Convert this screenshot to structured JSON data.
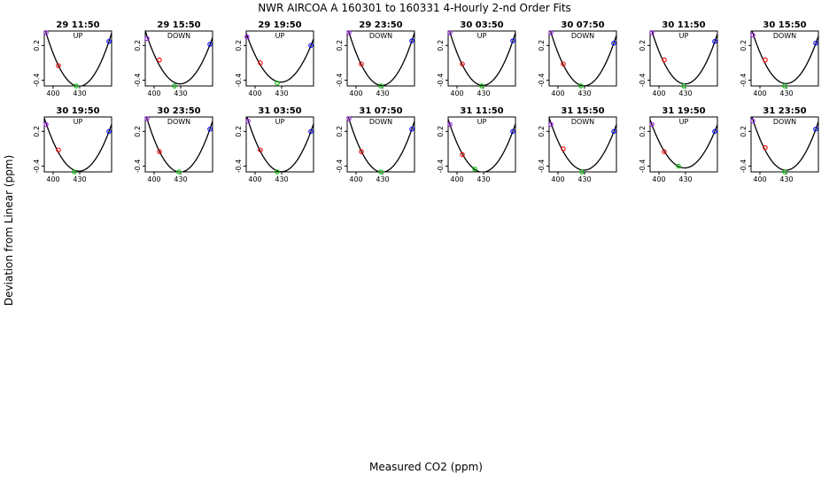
{
  "title": "NWR   AIRCOA A   160301 to 160331   4-Hourly 2-nd Order Fits",
  "ylabel": "Deviation from Linear (ppm)",
  "xlabel": "Measured CO2 (ppm)",
  "chart_data": {
    "type": "scatter",
    "title": "NWR   AIRCOA A   160301 to 160331   4-Hourly 2-nd Order Fits",
    "xlabel": "Measured CO2 (ppm)",
    "ylabel": "Deviation from Linear (ppm)",
    "xlim": [
      390,
      466
    ],
    "ylim": [
      -0.5,
      0.45
    ],
    "xticks": [
      400,
      430
    ],
    "xtick_labels": [
      "400",
      "430"
    ],
    "yticks": [
      0.2,
      -0.4
    ],
    "ytick_labels": [
      "0.2",
      "-0.4"
    ],
    "panels": [
      {
        "label": "29 11:50",
        "direction": "UP",
        "points": [
          {
            "x": 392,
            "y": 0.42,
            "color": "purple"
          },
          {
            "x": 406,
            "y": -0.15,
            "color": "red"
          },
          {
            "x": 426,
            "y": -0.5,
            "color": "green"
          },
          {
            "x": 463,
            "y": 0.27,
            "color": "blue"
          }
        ]
      },
      {
        "label": "29 15:50",
        "direction": "DOWN",
        "points": [
          {
            "x": 392,
            "y": 0.32,
            "color": "purple"
          },
          {
            "x": 406,
            "y": -0.05,
            "color": "red"
          },
          {
            "x": 423,
            "y": -0.5,
            "color": "green"
          },
          {
            "x": 463,
            "y": 0.22,
            "color": "blue"
          }
        ]
      },
      {
        "label": "29 19:50",
        "direction": "UP",
        "points": [
          {
            "x": 391,
            "y": 0.35,
            "color": "purple"
          },
          {
            "x": 406,
            "y": -0.1,
            "color": "red"
          },
          {
            "x": 425,
            "y": -0.45,
            "color": "green"
          },
          {
            "x": 463,
            "y": 0.2,
            "color": "blue"
          }
        ]
      },
      {
        "label": "29 23:50",
        "direction": "DOWN",
        "points": [
          {
            "x": 392,
            "y": 0.42,
            "color": "purple"
          },
          {
            "x": 406,
            "y": -0.12,
            "color": "red"
          },
          {
            "x": 428,
            "y": -0.5,
            "color": "green"
          },
          {
            "x": 463,
            "y": 0.28,
            "color": "blue"
          }
        ]
      },
      {
        "label": "30 03:50",
        "direction": "UP",
        "points": [
          {
            "x": 392,
            "y": 0.42,
            "color": "purple"
          },
          {
            "x": 406,
            "y": -0.12,
            "color": "red"
          },
          {
            "x": 428,
            "y": -0.5,
            "color": "green"
          },
          {
            "x": 463,
            "y": 0.28,
            "color": "blue"
          }
        ]
      },
      {
        "label": "30 07:50",
        "direction": "DOWN",
        "points": [
          {
            "x": 392,
            "y": 0.42,
            "color": "purple"
          },
          {
            "x": 406,
            "y": -0.12,
            "color": "red"
          },
          {
            "x": 426,
            "y": -0.5,
            "color": "green"
          },
          {
            "x": 463,
            "y": 0.24,
            "color": "blue"
          }
        ]
      },
      {
        "label": "30 11:50",
        "direction": "UP",
        "points": [
          {
            "x": 392,
            "y": 0.42,
            "color": "purple"
          },
          {
            "x": 406,
            "y": -0.05,
            "color": "red"
          },
          {
            "x": 428,
            "y": -0.5,
            "color": "green"
          },
          {
            "x": 463,
            "y": 0.27,
            "color": "blue"
          }
        ]
      },
      {
        "label": "30 15:50",
        "direction": "DOWN",
        "points": [
          {
            "x": 392,
            "y": 0.38,
            "color": "purple"
          },
          {
            "x": 406,
            "y": -0.05,
            "color": "red"
          },
          {
            "x": 428,
            "y": -0.5,
            "color": "green"
          },
          {
            "x": 463,
            "y": 0.24,
            "color": "blue"
          }
        ]
      },
      {
        "label": "30 19:50",
        "direction": "UP",
        "points": [
          {
            "x": 392,
            "y": 0.32,
            "color": "purple"
          },
          {
            "x": 406,
            "y": -0.12,
            "color": "red"
          },
          {
            "x": 424,
            "y": -0.5,
            "color": "green"
          },
          {
            "x": 463,
            "y": 0.2,
            "color": "blue"
          }
        ]
      },
      {
        "label": "30 23:50",
        "direction": "DOWN",
        "points": [
          {
            "x": 392,
            "y": 0.42,
            "color": "purple"
          },
          {
            "x": 406,
            "y": -0.15,
            "color": "red"
          },
          {
            "x": 428,
            "y": -0.5,
            "color": "green"
          },
          {
            "x": 463,
            "y": 0.24,
            "color": "blue"
          }
        ]
      },
      {
        "label": "31 03:50",
        "direction": "UP",
        "points": [
          {
            "x": 392,
            "y": 0.38,
            "color": "purple"
          },
          {
            "x": 406,
            "y": -0.12,
            "color": "red"
          },
          {
            "x": 425,
            "y": -0.5,
            "color": "green"
          },
          {
            "x": 463,
            "y": 0.2,
            "color": "blue"
          }
        ]
      },
      {
        "label": "31 07:50",
        "direction": "DOWN",
        "points": [
          {
            "x": 392,
            "y": 0.42,
            "color": "purple"
          },
          {
            "x": 406,
            "y": -0.15,
            "color": "red"
          },
          {
            "x": 428,
            "y": -0.5,
            "color": "green"
          },
          {
            "x": 463,
            "y": 0.24,
            "color": "blue"
          }
        ]
      },
      {
        "label": "31 11:50",
        "direction": "UP",
        "points": [
          {
            "x": 392,
            "y": 0.32,
            "color": "purple"
          },
          {
            "x": 406,
            "y": -0.2,
            "color": "red"
          },
          {
            "x": 420,
            "y": -0.45,
            "color": "green"
          },
          {
            "x": 463,
            "y": 0.2,
            "color": "blue"
          }
        ]
      },
      {
        "label": "31 15:50",
        "direction": "DOWN",
        "points": [
          {
            "x": 392,
            "y": 0.32,
            "color": "purple"
          },
          {
            "x": 406,
            "y": -0.1,
            "color": "red"
          },
          {
            "x": 427,
            "y": -0.5,
            "color": "green"
          },
          {
            "x": 463,
            "y": 0.2,
            "color": "blue"
          }
        ]
      },
      {
        "label": "31 19:50",
        "direction": "UP",
        "points": [
          {
            "x": 392,
            "y": 0.32,
            "color": "purple"
          },
          {
            "x": 406,
            "y": -0.15,
            "color": "red"
          },
          {
            "x": 422,
            "y": -0.4,
            "color": "green"
          },
          {
            "x": 463,
            "y": 0.2,
            "color": "blue"
          }
        ]
      },
      {
        "label": "31 23:50",
        "direction": "DOWN",
        "points": [
          {
            "x": 392,
            "y": 0.38,
            "color": "purple"
          },
          {
            "x": 406,
            "y": -0.08,
            "color": "red"
          },
          {
            "x": 428,
            "y": -0.5,
            "color": "green"
          },
          {
            "x": 463,
            "y": 0.24,
            "color": "blue"
          }
        ]
      }
    ],
    "colors": {
      "purple": "#a020f0",
      "red": "#ff0000",
      "green": "#00c000",
      "blue": "#0000ff",
      "fit": "#000000"
    }
  }
}
